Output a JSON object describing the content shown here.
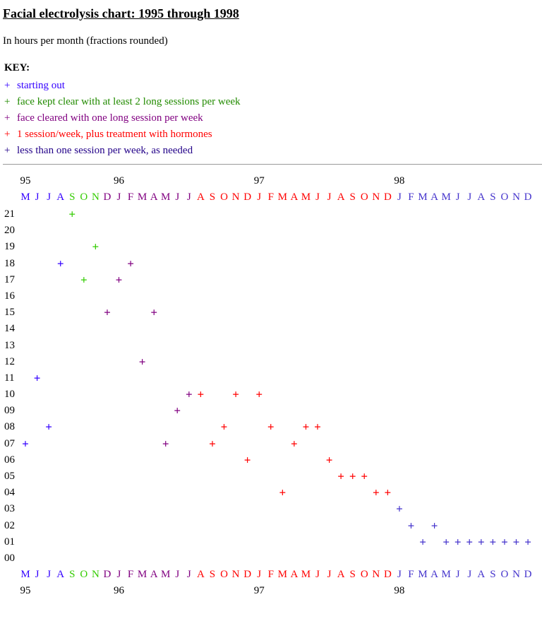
{
  "title": "Facial electrolysis chart: 1995 through 1998",
  "subtitle": "In hours per month (fractions rounded)",
  "key": {
    "heading": "KEY:",
    "items": [
      {
        "symbol": "+",
        "label": "starting out",
        "color": "#3300ff"
      },
      {
        "symbol": "+",
        "label": "face kept clear with at least 2 long sessions per week",
        "color": "#228b00"
      },
      {
        "symbol": "+",
        "label": "face cleared with one long session per week",
        "color": "#800080"
      },
      {
        "symbol": "+",
        "label": "1 session/week, plus treatment with hormones",
        "color": "#ff0000"
      },
      {
        "symbol": "+",
        "label": "less than one session per week, as needed",
        "color": "#220088"
      }
    ]
  },
  "chart_data": {
    "type": "scatter",
    "marker": "+",
    "title": "Facial electrolysis chart: 1995 through 1998",
    "subtitle": "In hours per month (fractions rounded)",
    "ylim": [
      0,
      21
    ],
    "y_ticks": [
      "00",
      "01",
      "02",
      "03",
      "04",
      "05",
      "06",
      "07",
      "08",
      "09",
      "10",
      "11",
      "12",
      "13",
      "14",
      "15",
      "16",
      "17",
      "18",
      "19",
      "20",
      "21"
    ],
    "year_labels": [
      {
        "label": "95",
        "month": "1995-05"
      },
      {
        "label": "96",
        "month": "1996-01"
      },
      {
        "label": "97",
        "month": "1997-01"
      },
      {
        "label": "98",
        "month": "1998-01"
      }
    ],
    "months": [
      {
        "m": "1995-05",
        "label": "M",
        "color": "#3300ff"
      },
      {
        "m": "1995-06",
        "label": "J",
        "color": "#3300ff"
      },
      {
        "m": "1995-07",
        "label": "J",
        "color": "#3300ff"
      },
      {
        "m": "1995-08",
        "label": "A",
        "color": "#3300ff"
      },
      {
        "m": "1995-09",
        "label": "S",
        "color": "#33cc00"
      },
      {
        "m": "1995-10",
        "label": "O",
        "color": "#33cc00"
      },
      {
        "m": "1995-11",
        "label": "N",
        "color": "#33cc00"
      },
      {
        "m": "1995-12",
        "label": "D",
        "color": "#800080"
      },
      {
        "m": "1996-01",
        "label": "J",
        "color": "#800080"
      },
      {
        "m": "1996-02",
        "label": "F",
        "color": "#800080"
      },
      {
        "m": "1996-03",
        "label": "M",
        "color": "#800080"
      },
      {
        "m": "1996-04",
        "label": "A",
        "color": "#800080"
      },
      {
        "m": "1996-05",
        "label": "M",
        "color": "#800080"
      },
      {
        "m": "1996-06",
        "label": "J",
        "color": "#800080"
      },
      {
        "m": "1996-07",
        "label": "J",
        "color": "#800080"
      },
      {
        "m": "1996-08",
        "label": "A",
        "color": "#ff0000"
      },
      {
        "m": "1996-09",
        "label": "S",
        "color": "#ff0000"
      },
      {
        "m": "1996-10",
        "label": "O",
        "color": "#ff0000"
      },
      {
        "m": "1996-11",
        "label": "N",
        "color": "#ff0000"
      },
      {
        "m": "1996-12",
        "label": "D",
        "color": "#ff0000"
      },
      {
        "m": "1997-01",
        "label": "J",
        "color": "#ff0000"
      },
      {
        "m": "1997-02",
        "label": "F",
        "color": "#ff0000"
      },
      {
        "m": "1997-03",
        "label": "M",
        "color": "#ff0000"
      },
      {
        "m": "1997-04",
        "label": "A",
        "color": "#ff0000"
      },
      {
        "m": "1997-05",
        "label": "M",
        "color": "#ff0000"
      },
      {
        "m": "1997-06",
        "label": "J",
        "color": "#ff0000"
      },
      {
        "m": "1997-07",
        "label": "J",
        "color": "#ff0000"
      },
      {
        "m": "1997-08",
        "label": "A",
        "color": "#ff0000"
      },
      {
        "m": "1997-09",
        "label": "S",
        "color": "#ff0000"
      },
      {
        "m": "1997-10",
        "label": "O",
        "color": "#ff0000"
      },
      {
        "m": "1997-11",
        "label": "N",
        "color": "#ff0000"
      },
      {
        "m": "1997-12",
        "label": "D",
        "color": "#ff0000"
      },
      {
        "m": "1998-01",
        "label": "J",
        "color": "#4433cc"
      },
      {
        "m": "1998-02",
        "label": "F",
        "color": "#4433cc"
      },
      {
        "m": "1998-03",
        "label": "M",
        "color": "#4433cc"
      },
      {
        "m": "1998-04",
        "label": "A",
        "color": "#4433cc"
      },
      {
        "m": "1998-05",
        "label": "M",
        "color": "#4433cc"
      },
      {
        "m": "1998-06",
        "label": "J",
        "color": "#4433cc"
      },
      {
        "m": "1998-07",
        "label": "J",
        "color": "#4433cc"
      },
      {
        "m": "1998-08",
        "label": "A",
        "color": "#4433cc"
      },
      {
        "m": "1998-09",
        "label": "S",
        "color": "#4433cc"
      },
      {
        "m": "1998-10",
        "label": "O",
        "color": "#4433cc"
      },
      {
        "m": "1998-11",
        "label": "N",
        "color": "#4433cc"
      },
      {
        "m": "1998-12",
        "label": "D",
        "color": "#4433cc"
      }
    ],
    "series": [
      {
        "name": "starting out",
        "color": "#3300ff",
        "points": [
          [
            "1995-05",
            7
          ],
          [
            "1995-06",
            11
          ],
          [
            "1995-07",
            8
          ],
          [
            "1995-08",
            18
          ]
        ]
      },
      {
        "name": "face kept clear with at least 2 long sessions per week",
        "color": "#33cc00",
        "points": [
          [
            "1995-09",
            21
          ],
          [
            "1995-10",
            17
          ],
          [
            "1995-11",
            19
          ]
        ]
      },
      {
        "name": "face cleared with one long session per week",
        "color": "#800080",
        "points": [
          [
            "1995-12",
            15
          ],
          [
            "1996-01",
            17
          ],
          [
            "1996-02",
            18
          ],
          [
            "1996-03",
            12
          ],
          [
            "1996-04",
            15
          ],
          [
            "1996-05",
            7
          ],
          [
            "1996-06",
            9
          ],
          [
            "1996-07",
            10
          ]
        ]
      },
      {
        "name": "1 session/week, plus treatment with hormones",
        "color": "#ff0000",
        "points": [
          [
            "1996-08",
            10
          ],
          [
            "1996-09",
            7
          ],
          [
            "1996-10",
            8
          ],
          [
            "1996-11",
            10
          ],
          [
            "1996-12",
            6
          ],
          [
            "1997-01",
            10
          ],
          [
            "1997-02",
            8
          ],
          [
            "1997-03",
            4
          ],
          [
            "1997-04",
            7
          ],
          [
            "1997-05",
            8
          ],
          [
            "1997-06",
            8
          ],
          [
            "1997-07",
            6
          ],
          [
            "1997-08",
            5
          ],
          [
            "1997-09",
            5
          ],
          [
            "1997-10",
            5
          ],
          [
            "1997-11",
            4
          ],
          [
            "1997-12",
            4
          ]
        ]
      },
      {
        "name": "less than one session per week, as needed",
        "color": "#4433cc",
        "points": [
          [
            "1998-01",
            3
          ],
          [
            "1998-02",
            2
          ],
          [
            "1998-03",
            1
          ],
          [
            "1998-04",
            2
          ],
          [
            "1998-05",
            1
          ],
          [
            "1998-06",
            1
          ],
          [
            "1998-07",
            1
          ],
          [
            "1998-08",
            1
          ],
          [
            "1998-09",
            1
          ],
          [
            "1998-10",
            1
          ],
          [
            "1998-11",
            1
          ],
          [
            "1998-12",
            1
          ]
        ]
      }
    ]
  }
}
